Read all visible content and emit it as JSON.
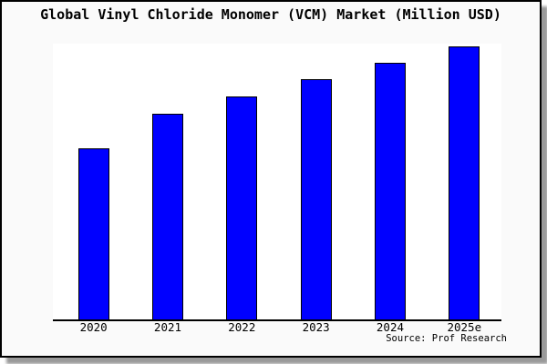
{
  "colors": {
    "bar_fill": "#0000ff",
    "bar_border": "#000000",
    "axis": "#000000",
    "plot_bg": "#ffffff",
    "page_bg": "#fafafa",
    "frame_border": "#000000",
    "shadow": "#9a9a9a",
    "text": "#000000"
  },
  "chart_data": {
    "type": "bar",
    "title": "Global Vinyl Chloride Monomer (VCM) Market (Million USD)",
    "categories": [
      "2020",
      "2021",
      "2022",
      "2023",
      "2024",
      "2025e"
    ],
    "values_relative_pct_of_max": [
      62.7,
      75.3,
      81.7,
      88.0,
      94.0,
      100.0
    ],
    "value_scale_note": "no y-axis scale shown; values are relative bar heights, 2025e = 100",
    "xlabel": "",
    "ylabel": "",
    "y_axis_ticks_visible": false,
    "gridlines": false,
    "legend": "none",
    "bar_color": "#0000ff",
    "source_note": "Source: Prof Research"
  }
}
